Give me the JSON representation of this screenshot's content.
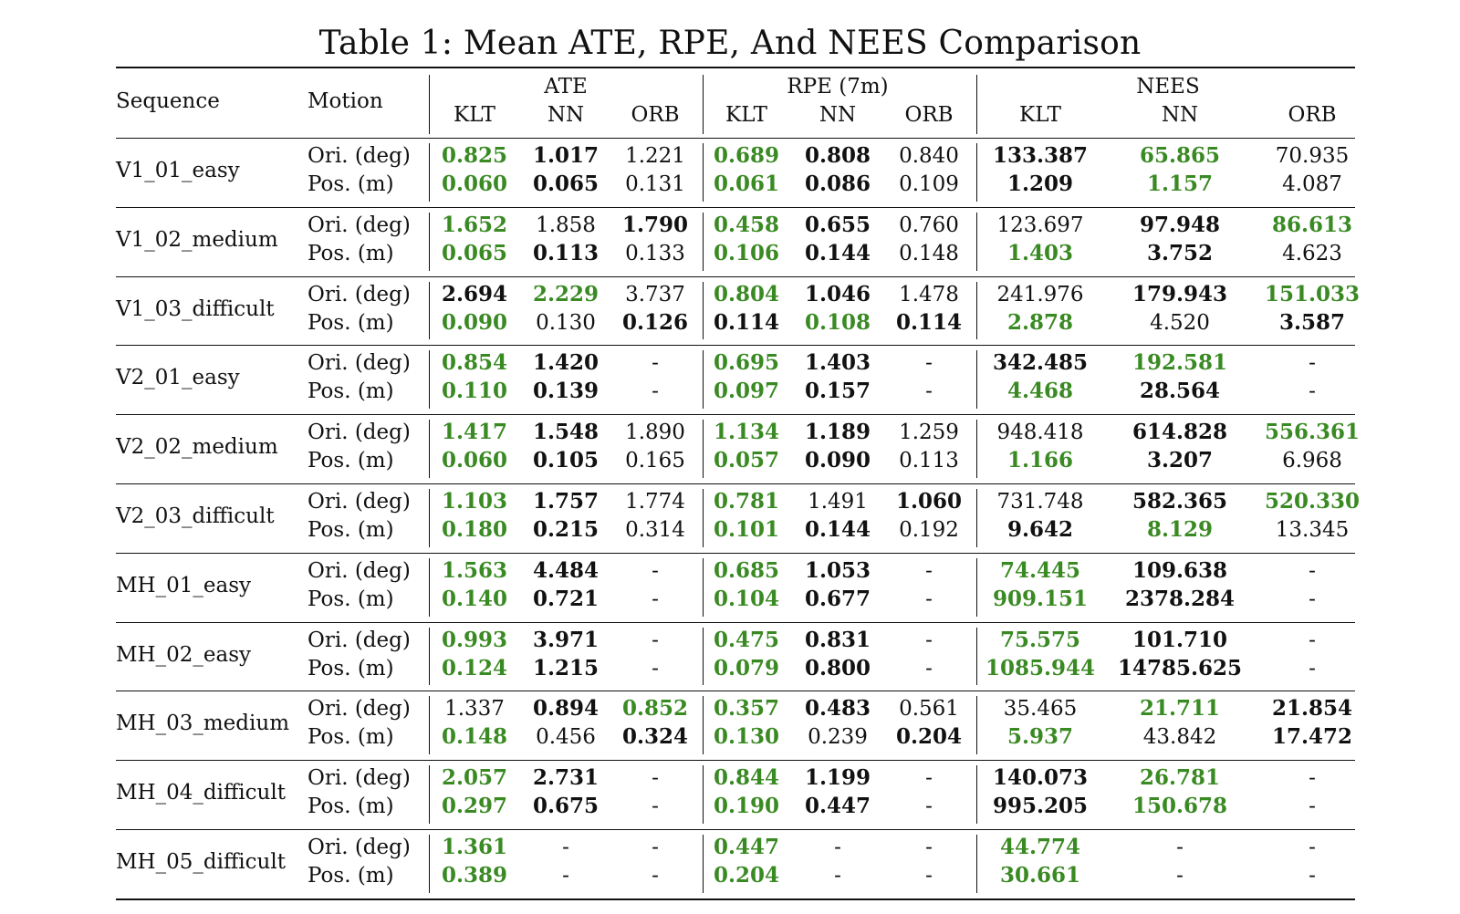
{
  "title": "Table 1: Mean ATE, RPE, And NEES Comparison",
  "header": {
    "sequence": "Sequence",
    "motion": "Motion",
    "groups": [
      "ATE",
      "RPE (7m)",
      "NEES"
    ],
    "subcols": [
      "KLT",
      "NN",
      "ORB",
      "KLT",
      "NN",
      "ORB",
      "KLT",
      "NN",
      "ORB"
    ]
  },
  "motion_labels": [
    "Ori. (deg)",
    "Pos. (m)"
  ],
  "colors": {
    "best": "#3a8a23",
    "second": "#111111"
  },
  "rows": [
    {
      "seq": "V1_01_easy",
      "ori": [
        [
          "0.825",
          "g"
        ],
        [
          "1.017",
          "b"
        ],
        [
          "1.221",
          ""
        ],
        [
          "0.689",
          "g"
        ],
        [
          "0.808",
          "b"
        ],
        [
          "0.840",
          ""
        ],
        [
          "133.387",
          "b"
        ],
        [
          "65.865",
          "g"
        ],
        [
          "70.935",
          ""
        ]
      ],
      "pos": [
        [
          "0.060",
          "g"
        ],
        [
          "0.065",
          "b"
        ],
        [
          "0.131",
          ""
        ],
        [
          "0.061",
          "g"
        ],
        [
          "0.086",
          "b"
        ],
        [
          "0.109",
          ""
        ],
        [
          "1.209",
          "b"
        ],
        [
          "1.157",
          "g"
        ],
        [
          "4.087",
          ""
        ]
      ]
    },
    {
      "seq": "V1_02_medium",
      "ori": [
        [
          "1.652",
          "g"
        ],
        [
          "1.858",
          ""
        ],
        [
          "1.790",
          "b"
        ],
        [
          "0.458",
          "g"
        ],
        [
          "0.655",
          "b"
        ],
        [
          "0.760",
          ""
        ],
        [
          "123.697",
          ""
        ],
        [
          "97.948",
          "b"
        ],
        [
          "86.613",
          "g"
        ]
      ],
      "pos": [
        [
          "0.065",
          "g"
        ],
        [
          "0.113",
          "b"
        ],
        [
          "0.133",
          ""
        ],
        [
          "0.106",
          "g"
        ],
        [
          "0.144",
          "b"
        ],
        [
          "0.148",
          ""
        ],
        [
          "1.403",
          "g"
        ],
        [
          "3.752",
          "b"
        ],
        [
          "4.623",
          ""
        ]
      ]
    },
    {
      "seq": "V1_03_difficult",
      "ori": [
        [
          "2.694",
          "b"
        ],
        [
          "2.229",
          "g"
        ],
        [
          "3.737",
          ""
        ],
        [
          "0.804",
          "g"
        ],
        [
          "1.046",
          "b"
        ],
        [
          "1.478",
          ""
        ],
        [
          "241.976",
          ""
        ],
        [
          "179.943",
          "b"
        ],
        [
          "151.033",
          "g"
        ]
      ],
      "pos": [
        [
          "0.090",
          "g"
        ],
        [
          "0.130",
          ""
        ],
        [
          "0.126",
          "b"
        ],
        [
          "0.114",
          "b"
        ],
        [
          "0.108",
          "g"
        ],
        [
          "0.114",
          "b"
        ],
        [
          "2.878",
          "g"
        ],
        [
          "4.520",
          ""
        ],
        [
          "3.587",
          "b"
        ]
      ]
    },
    {
      "seq": "V2_01_easy",
      "ori": [
        [
          "0.854",
          "g"
        ],
        [
          "1.420",
          "b"
        ],
        [
          "-",
          ""
        ],
        [
          "0.695",
          "g"
        ],
        [
          "1.403",
          "b"
        ],
        [
          "-",
          ""
        ],
        [
          "342.485",
          "b"
        ],
        [
          "192.581",
          "g"
        ],
        [
          "-",
          ""
        ]
      ],
      "pos": [
        [
          "0.110",
          "g"
        ],
        [
          "0.139",
          "b"
        ],
        [
          "-",
          ""
        ],
        [
          "0.097",
          "g"
        ],
        [
          "0.157",
          "b"
        ],
        [
          "-",
          ""
        ],
        [
          "4.468",
          "g"
        ],
        [
          "28.564",
          "b"
        ],
        [
          "-",
          ""
        ]
      ]
    },
    {
      "seq": "V2_02_medium",
      "ori": [
        [
          "1.417",
          "g"
        ],
        [
          "1.548",
          "b"
        ],
        [
          "1.890",
          ""
        ],
        [
          "1.134",
          "g"
        ],
        [
          "1.189",
          "b"
        ],
        [
          "1.259",
          ""
        ],
        [
          "948.418",
          ""
        ],
        [
          "614.828",
          "b"
        ],
        [
          "556.361",
          "g"
        ]
      ],
      "pos": [
        [
          "0.060",
          "g"
        ],
        [
          "0.105",
          "b"
        ],
        [
          "0.165",
          ""
        ],
        [
          "0.057",
          "g"
        ],
        [
          "0.090",
          "b"
        ],
        [
          "0.113",
          ""
        ],
        [
          "1.166",
          "g"
        ],
        [
          "3.207",
          "b"
        ],
        [
          "6.968",
          ""
        ]
      ]
    },
    {
      "seq": "V2_03_difficult",
      "ori": [
        [
          "1.103",
          "g"
        ],
        [
          "1.757",
          "b"
        ],
        [
          "1.774",
          ""
        ],
        [
          "0.781",
          "g"
        ],
        [
          "1.491",
          ""
        ],
        [
          "1.060",
          "b"
        ],
        [
          "731.748",
          ""
        ],
        [
          "582.365",
          "b"
        ],
        [
          "520.330",
          "g"
        ]
      ],
      "pos": [
        [
          "0.180",
          "g"
        ],
        [
          "0.215",
          "b"
        ],
        [
          "0.314",
          ""
        ],
        [
          "0.101",
          "g"
        ],
        [
          "0.144",
          "b"
        ],
        [
          "0.192",
          ""
        ],
        [
          "9.642",
          "b"
        ],
        [
          "8.129",
          "g"
        ],
        [
          "13.345",
          ""
        ]
      ]
    },
    {
      "seq": "MH_01_easy",
      "ori": [
        [
          "1.563",
          "g"
        ],
        [
          "4.484",
          "b"
        ],
        [
          "-",
          ""
        ],
        [
          "0.685",
          "g"
        ],
        [
          "1.053",
          "b"
        ],
        [
          "-",
          ""
        ],
        [
          "74.445",
          "g"
        ],
        [
          "109.638",
          "b"
        ],
        [
          "-",
          ""
        ]
      ],
      "pos": [
        [
          "0.140",
          "g"
        ],
        [
          "0.721",
          "b"
        ],
        [
          "-",
          ""
        ],
        [
          "0.104",
          "g"
        ],
        [
          "0.677",
          "b"
        ],
        [
          "-",
          ""
        ],
        [
          "909.151",
          "g"
        ],
        [
          "2378.284",
          "b"
        ],
        [
          "-",
          ""
        ]
      ]
    },
    {
      "seq": "MH_02_easy",
      "ori": [
        [
          "0.993",
          "g"
        ],
        [
          "3.971",
          "b"
        ],
        [
          "-",
          ""
        ],
        [
          "0.475",
          "g"
        ],
        [
          "0.831",
          "b"
        ],
        [
          "-",
          ""
        ],
        [
          "75.575",
          "g"
        ],
        [
          "101.710",
          "b"
        ],
        [
          "-",
          ""
        ]
      ],
      "pos": [
        [
          "0.124",
          "g"
        ],
        [
          "1.215",
          "b"
        ],
        [
          "-",
          ""
        ],
        [
          "0.079",
          "g"
        ],
        [
          "0.800",
          "b"
        ],
        [
          "-",
          ""
        ],
        [
          "1085.944",
          "g"
        ],
        [
          "14785.625",
          "b"
        ],
        [
          "-",
          ""
        ]
      ]
    },
    {
      "seq": "MH_03_medium",
      "ori": [
        [
          "1.337",
          ""
        ],
        [
          "0.894",
          "b"
        ],
        [
          "0.852",
          "g"
        ],
        [
          "0.357",
          "g"
        ],
        [
          "0.483",
          "b"
        ],
        [
          "0.561",
          ""
        ],
        [
          "35.465",
          ""
        ],
        [
          "21.711",
          "g"
        ],
        [
          "21.854",
          "b"
        ]
      ],
      "pos": [
        [
          "0.148",
          "g"
        ],
        [
          "0.456",
          ""
        ],
        [
          "0.324",
          "b"
        ],
        [
          "0.130",
          "g"
        ],
        [
          "0.239",
          ""
        ],
        [
          "0.204",
          "b"
        ],
        [
          "5.937",
          "g"
        ],
        [
          "43.842",
          ""
        ],
        [
          "17.472",
          "b"
        ]
      ]
    },
    {
      "seq": "MH_04_difficult",
      "ori": [
        [
          "2.057",
          "g"
        ],
        [
          "2.731",
          "b"
        ],
        [
          "-",
          ""
        ],
        [
          "0.844",
          "g"
        ],
        [
          "1.199",
          "b"
        ],
        [
          "-",
          ""
        ],
        [
          "140.073",
          "b"
        ],
        [
          "26.781",
          "g"
        ],
        [
          "-",
          ""
        ]
      ],
      "pos": [
        [
          "0.297",
          "g"
        ],
        [
          "0.675",
          "b"
        ],
        [
          "-",
          ""
        ],
        [
          "0.190",
          "g"
        ],
        [
          "0.447",
          "b"
        ],
        [
          "-",
          ""
        ],
        [
          "995.205",
          "b"
        ],
        [
          "150.678",
          "g"
        ],
        [
          "-",
          ""
        ]
      ]
    },
    {
      "seq": "MH_05_difficult",
      "ori": [
        [
          "1.361",
          "g"
        ],
        [
          "-",
          ""
        ],
        [
          "-",
          ""
        ],
        [
          "0.447",
          "g"
        ],
        [
          "-",
          ""
        ],
        [
          "-",
          ""
        ],
        [
          "44.774",
          "g"
        ],
        [
          "-",
          ""
        ],
        [
          "-",
          ""
        ]
      ],
      "pos": [
        [
          "0.389",
          "g"
        ],
        [
          "-",
          ""
        ],
        [
          "-",
          ""
        ],
        [
          "0.204",
          "g"
        ],
        [
          "-",
          ""
        ],
        [
          "-",
          ""
        ],
        [
          "30.661",
          "g"
        ],
        [
          "-",
          ""
        ],
        [
          "-",
          ""
        ]
      ]
    }
  ]
}
